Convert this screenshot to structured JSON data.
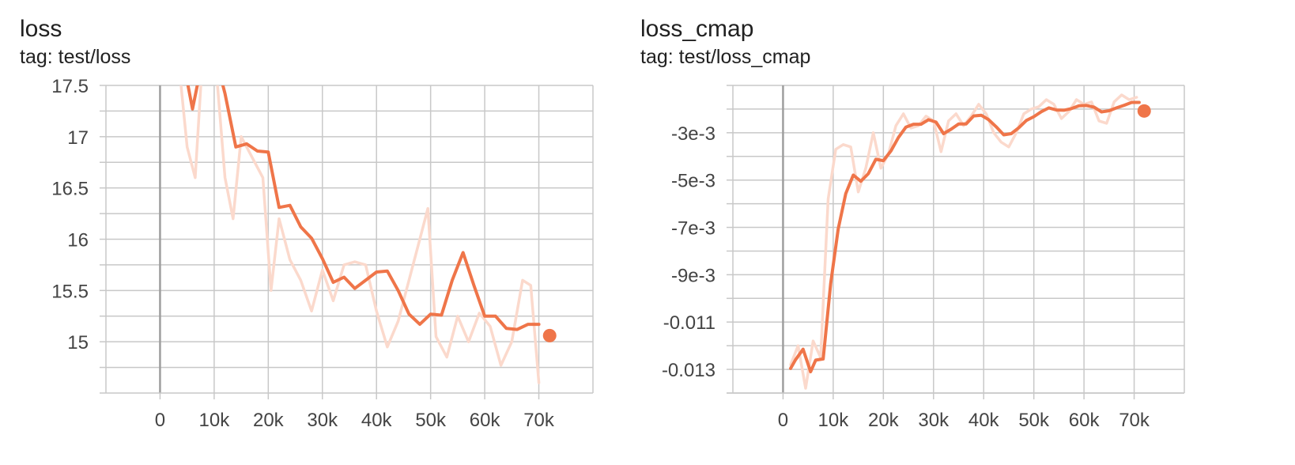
{
  "colors": {
    "line": "#ef7549",
    "raw": "#fbd9cc",
    "grid": "#c8c8c8",
    "axis": "#999999",
    "zero": "#9e9e9e"
  },
  "chart_data": [
    {
      "type": "line",
      "title": "loss",
      "subtitle": "tag: test/loss",
      "xlim": [
        -10000,
        80000
      ],
      "ylim": [
        14.5,
        17.5
      ],
      "y_grid_values": [
        14.75,
        15,
        15.25,
        15.5,
        15.75,
        16,
        16.25,
        16.5,
        16.75,
        17,
        17.25,
        17.5,
        17.75
      ],
      "x_ticks": [
        0,
        10000,
        20000,
        30000,
        40000,
        50000,
        60000,
        70000
      ],
      "x_tick_labels": [
        "0",
        "10k",
        "20k",
        "30k",
        "40k",
        "50k",
        "60k",
        "70k"
      ],
      "y_ticks": [
        15,
        15.5,
        16,
        16.5,
        17,
        17.5
      ],
      "y_tick_labels": [
        "15",
        "15.5",
        "16",
        "16.5",
        "17",
        "17.5"
      ],
      "grid": true,
      "series": [
        {
          "x": [
            4000,
            6000,
            8000,
            10000,
            12000,
            14000,
            16000,
            18000,
            20000,
            22000,
            24000,
            26000,
            28000,
            30000,
            32000,
            34000,
            36000,
            38000,
            40000,
            42000,
            44000,
            46000,
            48000,
            50000,
            52000,
            54000,
            56000,
            58000,
            60000,
            62000,
            64000,
            66000,
            68000,
            70000
          ],
          "y": [
            17.82,
            17.27,
            17.79,
            17.83,
            17.42,
            16.9,
            16.93,
            16.86,
            16.85,
            16.31,
            16.33,
            16.12,
            16.01,
            15.81,
            15.58,
            15.63,
            15.52,
            15.6,
            15.68,
            15.69,
            15.5,
            15.27,
            15.17,
            15.27,
            15.26,
            15.6,
            15.87,
            15.55,
            15.25,
            15.25,
            15.13,
            15.12,
            15.17,
            15.17
          ],
          "smoothed": true
        },
        {
          "x": [
            3500,
            5000,
            6500,
            8000,
            10000,
            12000,
            13500,
            15000,
            17000,
            19000,
            20500,
            22000,
            24000,
            26000,
            28000,
            30000,
            32000,
            34000,
            36000,
            38000,
            40000,
            42000,
            44000,
            46000,
            48000,
            49500,
            51000,
            53000,
            55000,
            57000,
            59000,
            61000,
            63000,
            65000,
            67000,
            68500,
            70000
          ],
          "y": [
            17.7,
            16.9,
            16.6,
            17.9,
            17.9,
            16.6,
            16.2,
            17.0,
            16.8,
            16.6,
            15.5,
            16.2,
            15.8,
            15.6,
            15.3,
            15.7,
            15.4,
            15.75,
            15.78,
            15.75,
            15.3,
            14.95,
            15.2,
            15.6,
            16.0,
            16.3,
            15.05,
            14.85,
            15.25,
            15.0,
            15.28,
            15.15,
            14.77,
            15.0,
            15.6,
            15.55,
            14.6
          ],
          "smoothed": false
        }
      ],
      "last_point": {
        "x": 72000,
        "y": 15.06
      }
    },
    {
      "type": "line",
      "title": "loss_cmap",
      "subtitle": "tag: test/loss_cmap",
      "xlim": [
        -10000,
        80000
      ],
      "ylim": [
        -0.014,
        -0.001
      ],
      "y_grid_values": [
        -0.014,
        -0.013,
        -0.012,
        -0.011,
        -0.01,
        -0.009,
        -0.008,
        -0.007,
        -0.006,
        -0.005,
        -0.004,
        -0.003,
        -0.002,
        -0.001
      ],
      "x_ticks": [
        0,
        10000,
        20000,
        30000,
        40000,
        50000,
        60000,
        70000
      ],
      "x_tick_labels": [
        "0",
        "10k",
        "20k",
        "30k",
        "40k",
        "50k",
        "60k",
        "70k"
      ],
      "y_ticks": [
        -0.013,
        -0.011,
        -0.009,
        -0.007,
        -0.005,
        -0.003
      ],
      "y_tick_labels": [
        "-0.013",
        "-0.011",
        "-9e-3",
        "-7e-3",
        "-5e-3",
        "-3e-3"
      ],
      "grid": true,
      "series": [
        {
          "x": [
            1500,
            2500,
            4000,
            5500,
            6500,
            8000,
            9500,
            11000,
            12500,
            14000,
            15500,
            17000,
            18500,
            20000,
            21500,
            23000,
            24500,
            26000,
            27500,
            29000,
            30500,
            32000,
            33500,
            35000,
            36500,
            38000,
            39500,
            41000,
            42500,
            44000,
            45500,
            47000,
            48500,
            50000,
            51500,
            53000,
            54500,
            56000,
            57500,
            59000,
            60500,
            62000,
            63500,
            65000,
            66500,
            68000,
            69500,
            71000
          ],
          "y": [
            -0.01296,
            -0.01259,
            -0.01215,
            -0.0131,
            -0.01261,
            -0.01256,
            -0.00937,
            -0.00707,
            -0.00557,
            -0.00479,
            -0.00505,
            -0.00473,
            -0.00412,
            -0.00418,
            -0.00377,
            -0.0032,
            -0.00276,
            -0.00264,
            -0.00264,
            -0.00245,
            -0.00255,
            -0.00304,
            -0.00285,
            -0.00263,
            -0.00263,
            -0.00229,
            -0.00226,
            -0.00245,
            -0.00275,
            -0.00309,
            -0.00304,
            -0.00279,
            -0.00248,
            -0.00232,
            -0.00211,
            -0.00195,
            -0.00204,
            -0.00205,
            -0.00198,
            -0.00186,
            -0.00185,
            -0.00192,
            -0.00212,
            -0.00207,
            -0.00195,
            -0.00184,
            -0.00172,
            -0.00172
          ],
          "smoothed": true
        },
        {
          "x": [
            1500,
            3000,
            4500,
            6000,
            7500,
            9000,
            10500,
            12000,
            13500,
            15000,
            16500,
            18000,
            19500,
            21000,
            22500,
            24000,
            25500,
            27000,
            28500,
            30000,
            31500,
            33000,
            34500,
            36000,
            37500,
            39000,
            40500,
            42000,
            43500,
            45000,
            46500,
            48000,
            49500,
            51000,
            52500,
            54000,
            55500,
            57000,
            58500,
            60000,
            61500,
            63000,
            64500,
            66000,
            67500,
            69000,
            70500
          ],
          "y": [
            -0.0128,
            -0.012,
            -0.0138,
            -0.0118,
            -0.0125,
            -0.0058,
            -0.0037,
            -0.0035,
            -0.0036,
            -0.0055,
            -0.0045,
            -0.003,
            -0.0045,
            -0.0039,
            -0.0027,
            -0.0022,
            -0.0028,
            -0.0027,
            -0.0023,
            -0.0025,
            -0.0038,
            -0.0025,
            -0.0022,
            -0.0027,
            -0.0023,
            -0.0018,
            -0.0022,
            -0.003,
            -0.0034,
            -0.0036,
            -0.003,
            -0.0022,
            -0.002,
            -0.0019,
            -0.0016,
            -0.0018,
            -0.0024,
            -0.0021,
            -0.0016,
            -0.0018,
            -0.0017,
            -0.0025,
            -0.0026,
            -0.0017,
            -0.0014,
            -0.0016,
            -0.0015
          ],
          "smoothed": false
        }
      ],
      "last_point": {
        "x": 72000,
        "y": -0.00208
      }
    }
  ]
}
